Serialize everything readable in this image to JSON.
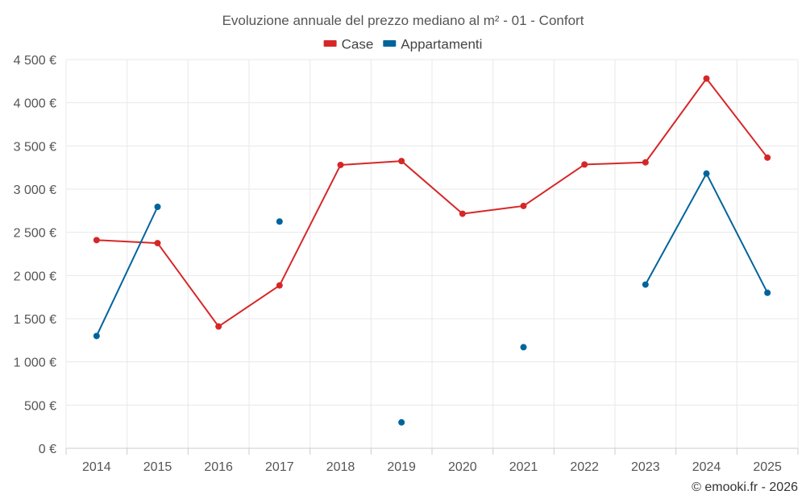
{
  "chart_data": {
    "type": "line",
    "title": "Evoluzione annuale del prezzo mediano al m² - 01 - Confort",
    "categories": [
      "2014",
      "2015",
      "2016",
      "2017",
      "2018",
      "2019",
      "2020",
      "2021",
      "2022",
      "2023",
      "2024",
      "2025"
    ],
    "series": [
      {
        "name": "Case",
        "color": "#d62728",
        "values": [
          2410,
          2375,
          1410,
          1885,
          3280,
          3325,
          2715,
          2805,
          3285,
          3310,
          4280,
          3365
        ]
      },
      {
        "name": "Appartamenti",
        "color": "#00649c",
        "values": [
          1300,
          2795,
          null,
          2625,
          null,
          300,
          null,
          1170,
          null,
          1895,
          3180,
          1800
        ]
      }
    ],
    "ylim": [
      0,
      4500
    ],
    "yticks": [
      0,
      500,
      1000,
      1500,
      2000,
      2500,
      3000,
      3500,
      4000,
      4500
    ],
    "ytick_labels": [
      "0 €",
      "500 €",
      "1 000 €",
      "1 500 €",
      "2 000 €",
      "2 500 €",
      "3 000 €",
      "3 500 €",
      "4 000 €",
      "4 500 €"
    ],
    "legend_position": "top-center",
    "grid": true,
    "xlabel": "",
    "ylabel": ""
  },
  "credit": "© emooki.fr - 2026"
}
